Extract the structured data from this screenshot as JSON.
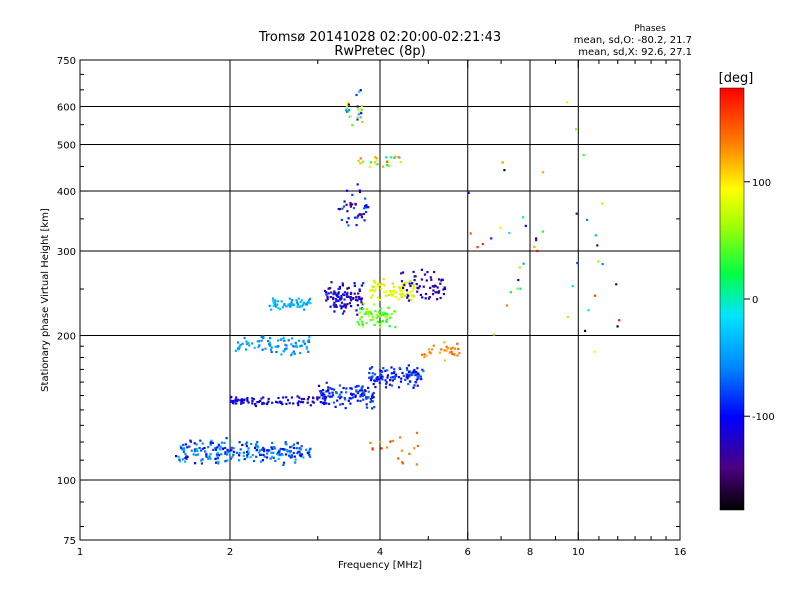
{
  "chart_data": {
    "type": "scatter",
    "title": "Tromsø 20141028 02:20:00-02:21:43",
    "subtitle": "RwPretec (8p)",
    "xlabel": "Frequency [MHz]",
    "ylabel": "Stationary phase Virtual Height [km]",
    "x_scale": "log",
    "y_scale": "log",
    "xlim": [
      1,
      16
    ],
    "ylim": [
      75,
      750
    ],
    "x_ticks": [
      1,
      2,
      4,
      6,
      8,
      10,
      16
    ],
    "x_tick_labels": [
      "1",
      "2",
      "4",
      "6",
      "8",
      "10",
      "16"
    ],
    "x_minor_ticks": [
      3,
      5,
      7,
      9,
      11,
      12,
      13,
      14,
      15
    ],
    "y_ticks": [
      75,
      100,
      200,
      300,
      400,
      500,
      600,
      750
    ],
    "y_tick_labels": [
      "75",
      "100",
      "200",
      "300",
      "400",
      "500",
      "600",
      "750"
    ],
    "grid_x": [
      2,
      4,
      6,
      8,
      10
    ],
    "grid_y": [
      100,
      200,
      300,
      400,
      500,
      600
    ],
    "grid": true,
    "stats": {
      "title": "Phases",
      "line_o": "mean, sd,O: -80.2, 21.7",
      "line_x": "mean, sd,X:  92.6, 27.1"
    },
    "colorbar": {
      "label": "[deg]",
      "min": -180,
      "max": 180,
      "ticks": [
        100,
        0,
        -100
      ],
      "tick_labels": [
        "100",
        "0",
        "-100"
      ]
    },
    "clusters": [
      {
        "f0": 1.55,
        "f1": 2.9,
        "h0": 108,
        "h1": 122,
        "n": 230,
        "p0": -110,
        "p1": -30,
        "spread": 0.05
      },
      {
        "f0": 2.0,
        "f1": 3.1,
        "h0": 142,
        "h1": 150,
        "n": 90,
        "p0": -130,
        "p1": -90,
        "spread": 0.03
      },
      {
        "f0": 3.0,
        "f1": 3.9,
        "h0": 140,
        "h1": 160,
        "n": 110,
        "p0": -120,
        "p1": -60,
        "spread": 0.03
      },
      {
        "f0": 3.8,
        "f1": 4.9,
        "h0": 155,
        "h1": 175,
        "n": 110,
        "p0": -120,
        "p1": -60,
        "spread": 0.03
      },
      {
        "f0": 2.05,
        "f1": 2.9,
        "h0": 182,
        "h1": 200,
        "n": 80,
        "p0": -70,
        "p1": -30,
        "spread": 0.04
      },
      {
        "f0": 2.4,
        "f1": 2.9,
        "h0": 225,
        "h1": 240,
        "n": 55,
        "p0": -60,
        "p1": -20,
        "spread": 0.04
      },
      {
        "f0": 3.1,
        "f1": 3.7,
        "h0": 220,
        "h1": 260,
        "n": 110,
        "p0": -150,
        "p1": -80,
        "spread": 0.06
      },
      {
        "f0": 3.6,
        "f1": 4.3,
        "h0": 205,
        "h1": 235,
        "n": 70,
        "p0": 20,
        "p1": 80,
        "spread": 0.05
      },
      {
        "f0": 3.8,
        "f1": 4.7,
        "h0": 235,
        "h1": 265,
        "n": 80,
        "p0": 60,
        "p1": 110,
        "spread": 0.05
      },
      {
        "f0": 4.4,
        "f1": 5.4,
        "h0": 235,
        "h1": 275,
        "n": 60,
        "p0": -150,
        "p1": -100,
        "spread": 0.04
      },
      {
        "f0": 4.8,
        "f1": 5.8,
        "h0": 175,
        "h1": 195,
        "n": 30,
        "p0": 110,
        "p1": 150,
        "spread": 0.04
      },
      {
        "f0": 3.6,
        "f1": 4.4,
        "h0": 440,
        "h1": 480,
        "n": 25,
        "p0": -40,
        "p1": 150,
        "spread": 0.03
      },
      {
        "f0": 3.3,
        "f1": 3.8,
        "h0": 330,
        "h1": 420,
        "n": 40,
        "p0": -150,
        "p1": -60,
        "spread": 0.08
      },
      {
        "f0": 3.4,
        "f1": 3.7,
        "h0": 540,
        "h1": 660,
        "n": 25,
        "p0": -160,
        "p1": 140,
        "spread": 0.05
      },
      {
        "f0": 3.8,
        "f1": 4.8,
        "h0": 105,
        "h1": 125,
        "n": 18,
        "p0": 120,
        "p1": 170,
        "spread": 0.03
      },
      {
        "f0": 6.0,
        "f1": 12.5,
        "h0": 150,
        "h1": 650,
        "n": 45,
        "p0": -180,
        "p1": 180,
        "spread": 0.1
      }
    ]
  }
}
